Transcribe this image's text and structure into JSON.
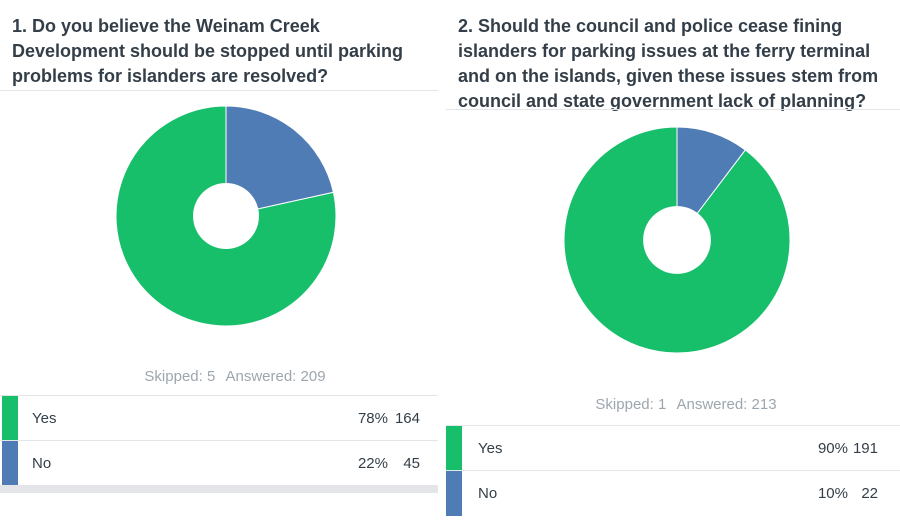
{
  "colors": {
    "yes": "#18bf6b",
    "no": "#507cb6"
  },
  "chart_data": [
    {
      "type": "pie",
      "variant": "donut",
      "title": "1. Do you believe the Weinam Creek Development should be stopped until parking problems for islanders are resolved?",
      "categories": [
        "Yes",
        "No"
      ],
      "percentages": [
        78,
        22
      ],
      "values": [
        164,
        45
      ],
      "skipped_label": "Skipped: 5",
      "answered_label": "Answered: 209",
      "rows": [
        {
          "label": "Yes",
          "pct": "78%",
          "count": "164"
        },
        {
          "label": "No",
          "pct": "22%",
          "count": "45"
        }
      ]
    },
    {
      "type": "pie",
      "variant": "donut",
      "title": "2. Should the council and police cease fining islanders for parking issues at the ferry terminal and on the islands, given these issues stem from council and state government lack of planning?",
      "categories": [
        "Yes",
        "No"
      ],
      "percentages": [
        90,
        10
      ],
      "values": [
        191,
        22
      ],
      "skipped_label": "Skipped: 1",
      "answered_label": "Answered: 213",
      "rows": [
        {
          "label": "Yes",
          "pct": "90%",
          "count": "191"
        },
        {
          "label": "No",
          "pct": "10%",
          "count": "22"
        }
      ]
    }
  ]
}
